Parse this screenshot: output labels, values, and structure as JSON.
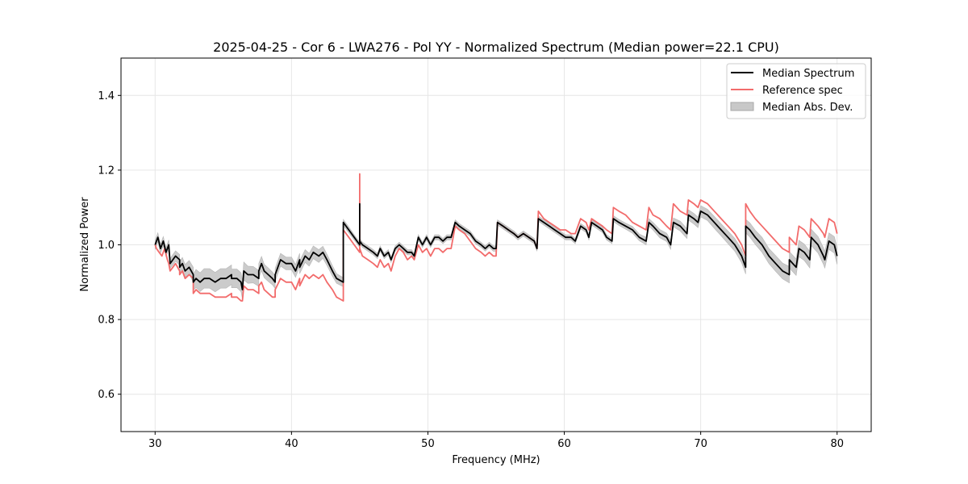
{
  "chart_data": {
    "type": "line",
    "title": "2025-04-25 - Cor 6 - LWA276 - Pol YY - Normalized Spectrum (Median power=22.1 CPU)",
    "xlabel": "Frequency (MHz)",
    "ylabel": "Normalized Power",
    "xlim": [
      27.5,
      82.5
    ],
    "ylim": [
      0.5,
      1.5
    ],
    "xticks": [
      30,
      40,
      50,
      60,
      70,
      80
    ],
    "yticks": [
      0.6,
      0.8,
      1.0,
      1.2,
      1.4
    ],
    "grid": true,
    "legend_position": "top-right",
    "colors": {
      "median": "#000000",
      "reference": "#f26b6b",
      "mad": "#c8c8c8"
    },
    "series": [
      {
        "name": "Median Spectrum",
        "x": [
          30.0,
          30.2,
          30.4,
          30.6,
          30.8,
          31.0,
          31.1,
          31.3,
          31.5,
          31.8,
          31.8,
          32.0,
          32.2,
          32.5,
          32.8,
          32.8,
          33.0,
          33.3,
          33.6,
          34.0,
          34.4,
          34.8,
          35.2,
          35.6,
          35.6,
          36.0,
          36.3,
          36.4,
          36.5,
          36.8,
          37.2,
          37.6,
          37.6,
          37.8,
          38.0,
          38.3,
          38.6,
          38.8,
          38.8,
          39.2,
          39.6,
          40.0,
          40.3,
          40.6,
          40.6,
          41.0,
          41.3,
          41.6,
          42.0,
          42.3,
          42.6,
          43.0,
          43.3,
          43.8,
          43.8,
          44.2,
          44.6,
          45.0,
          45.0,
          45.0,
          45.2,
          45.6,
          46.0,
          46.3,
          46.5,
          46.8,
          47.1,
          47.3,
          47.6,
          47.9,
          48.2,
          48.5,
          48.8,
          49.0,
          49.3,
          49.6,
          49.9,
          50.2,
          50.5,
          50.8,
          51.1,
          51.4,
          51.7,
          52.0,
          52.3,
          52.7,
          53.1,
          53.5,
          53.9,
          54.2,
          54.5,
          54.8,
          55.0,
          55.1,
          55.5,
          55.9,
          56.3,
          56.6,
          57.0,
          57.4,
          57.8,
          58.0,
          58.1,
          58.5,
          58.9,
          59.3,
          59.7,
          60.1,
          60.5,
          60.8,
          61.2,
          61.6,
          61.8,
          62.0,
          62.4,
          62.8,
          63.1,
          63.5,
          63.6,
          64.0,
          64.5,
          65.0,
          65.5,
          66.0,
          66.2,
          66.5,
          67.0,
          67.5,
          67.8,
          68.0,
          68.5,
          69.0,
          69.1,
          69.5,
          69.8,
          70.0,
          70.5,
          71.0,
          71.5,
          72.0,
          72.5,
          73.0,
          73.3,
          73.3,
          73.6,
          74.0,
          74.5,
          75.0,
          75.5,
          76.0,
          76.5,
          76.5,
          77.0,
          77.2,
          77.6,
          78.0,
          78.1,
          78.6,
          79.0,
          79.1,
          79.4,
          79.8,
          80.0
        ],
        "values": [
          1.0,
          1.02,
          0.99,
          1.01,
          0.98,
          1.0,
          0.95,
          0.96,
          0.97,
          0.96,
          0.94,
          0.95,
          0.93,
          0.94,
          0.92,
          0.9,
          0.91,
          0.9,
          0.91,
          0.91,
          0.9,
          0.91,
          0.91,
          0.92,
          0.91,
          0.91,
          0.9,
          0.88,
          0.93,
          0.92,
          0.92,
          0.91,
          0.93,
          0.95,
          0.93,
          0.92,
          0.91,
          0.9,
          0.92,
          0.96,
          0.95,
          0.95,
          0.93,
          0.96,
          0.94,
          0.97,
          0.96,
          0.98,
          0.97,
          0.98,
          0.96,
          0.93,
          0.91,
          0.9,
          1.06,
          1.04,
          1.02,
          1.0,
          1.11,
          1.01,
          1.0,
          0.99,
          0.98,
          0.97,
          0.99,
          0.97,
          0.98,
          0.96,
          0.99,
          1.0,
          0.99,
          0.98,
          0.98,
          0.97,
          1.02,
          1.0,
          1.02,
          1.0,
          1.02,
          1.02,
          1.01,
          1.02,
          1.02,
          1.06,
          1.05,
          1.04,
          1.03,
          1.01,
          1.0,
          0.99,
          1.0,
          0.99,
          0.99,
          1.06,
          1.05,
          1.04,
          1.03,
          1.02,
          1.03,
          1.02,
          1.01,
          0.99,
          1.07,
          1.06,
          1.05,
          1.04,
          1.03,
          1.02,
          1.02,
          1.01,
          1.05,
          1.04,
          1.02,
          1.06,
          1.05,
          1.04,
          1.02,
          1.01,
          1.07,
          1.06,
          1.05,
          1.04,
          1.02,
          1.01,
          1.06,
          1.05,
          1.03,
          1.02,
          1.0,
          1.06,
          1.05,
          1.03,
          1.08,
          1.07,
          1.06,
          1.09,
          1.08,
          1.06,
          1.04,
          1.02,
          1.0,
          0.97,
          0.94,
          1.05,
          1.04,
          1.02,
          1.0,
          0.97,
          0.95,
          0.93,
          0.92,
          0.96,
          0.94,
          0.99,
          0.98,
          0.96,
          1.02,
          1.0,
          0.97,
          0.96,
          1.01,
          1.0,
          0.97
        ],
        "mad": [
          0.012,
          0.012,
          0.012,
          0.012,
          0.012,
          0.013,
          0.013,
          0.014,
          0.014,
          0.014,
          0.015,
          0.016,
          0.017,
          0.018,
          0.02,
          0.022,
          0.024,
          0.025,
          0.026,
          0.026,
          0.026,
          0.026,
          0.026,
          0.026,
          0.025,
          0.025,
          0.025,
          0.025,
          0.024,
          0.023,
          0.022,
          0.021,
          0.02,
          0.019,
          0.018,
          0.018,
          0.017,
          0.017,
          0.017,
          0.017,
          0.017,
          0.017,
          0.017,
          0.017,
          0.017,
          0.017,
          0.017,
          0.017,
          0.017,
          0.016,
          0.015,
          0.014,
          0.013,
          0.012,
          0.008,
          0.008,
          0.007,
          0.007,
          0.007,
          0.007,
          0.007,
          0.007,
          0.007,
          0.007,
          0.007,
          0.007,
          0.007,
          0.007,
          0.007,
          0.007,
          0.007,
          0.007,
          0.007,
          0.007,
          0.007,
          0.007,
          0.007,
          0.007,
          0.007,
          0.007,
          0.007,
          0.007,
          0.007,
          0.007,
          0.007,
          0.007,
          0.007,
          0.007,
          0.007,
          0.007,
          0.007,
          0.007,
          0.007,
          0.007,
          0.007,
          0.007,
          0.007,
          0.007,
          0.007,
          0.007,
          0.007,
          0.007,
          0.007,
          0.007,
          0.007,
          0.007,
          0.007,
          0.007,
          0.007,
          0.007,
          0.007,
          0.007,
          0.007,
          0.007,
          0.007,
          0.007,
          0.007,
          0.007,
          0.008,
          0.008,
          0.008,
          0.009,
          0.009,
          0.01,
          0.01,
          0.01,
          0.011,
          0.011,
          0.012,
          0.012,
          0.013,
          0.013,
          0.014,
          0.014,
          0.014,
          0.015,
          0.015,
          0.016,
          0.016,
          0.017,
          0.017,
          0.018,
          0.018,
          0.018,
          0.019,
          0.019,
          0.02,
          0.02,
          0.021,
          0.021,
          0.022,
          0.022,
          0.022,
          0.022,
          0.022,
          0.022,
          0.022,
          0.022,
          0.022,
          0.022,
          0.022,
          0.022,
          0.022
        ]
      },
      {
        "name": "Reference spec",
        "x": [
          30.0,
          30.1,
          30.3,
          30.5,
          30.7,
          30.9,
          31.0,
          31.1,
          31.3,
          31.5,
          31.8,
          31.8,
          32.0,
          32.2,
          32.5,
          32.8,
          32.8,
          33.0,
          33.3,
          33.6,
          34.0,
          34.4,
          34.8,
          35.2,
          35.6,
          35.6,
          36.0,
          36.3,
          36.4,
          36.5,
          36.8,
          37.2,
          37.6,
          37.6,
          37.8,
          38.0,
          38.3,
          38.6,
          38.8,
          38.8,
          39.2,
          39.6,
          40.0,
          40.3,
          40.6,
          40.6,
          41.0,
          41.3,
          41.6,
          42.0,
          42.3,
          42.6,
          43.0,
          43.3,
          43.8,
          43.8,
          44.2,
          44.6,
          45.0,
          45.0,
          45.0,
          45.2,
          45.6,
          46.0,
          46.3,
          46.5,
          46.8,
          47.1,
          47.3,
          47.6,
          47.9,
          48.2,
          48.5,
          48.8,
          49.0,
          49.3,
          49.6,
          49.9,
          50.2,
          50.5,
          50.8,
          51.1,
          51.4,
          51.7,
          52.0,
          52.3,
          52.7,
          53.1,
          53.5,
          53.9,
          54.2,
          54.5,
          54.8,
          55.0,
          55.1,
          55.5,
          55.9,
          56.3,
          56.6,
          57.0,
          57.4,
          57.8,
          58.0,
          58.1,
          58.5,
          58.9,
          59.3,
          59.7,
          60.1,
          60.5,
          60.8,
          61.2,
          61.6,
          61.8,
          62.0,
          62.4,
          62.8,
          63.1,
          63.5,
          63.6,
          64.0,
          64.5,
          65.0,
          65.5,
          66.0,
          66.2,
          66.5,
          67.0,
          67.5,
          67.8,
          68.0,
          68.5,
          69.0,
          69.1,
          69.5,
          69.8,
          70.0,
          70.5,
          71.0,
          71.5,
          72.0,
          72.5,
          73.0,
          73.3,
          73.3,
          73.6,
          74.0,
          74.5,
          75.0,
          75.5,
          76.0,
          76.5,
          76.5,
          77.0,
          77.2,
          77.6,
          78.0,
          78.1,
          78.6,
          79.0,
          79.1,
          79.4,
          79.8,
          80.0
        ],
        "values": [
          1.0,
          0.99,
          0.98,
          0.97,
          0.99,
          0.96,
          0.95,
          0.93,
          0.94,
          0.95,
          0.93,
          0.92,
          0.93,
          0.91,
          0.92,
          0.91,
          0.87,
          0.88,
          0.87,
          0.87,
          0.87,
          0.86,
          0.86,
          0.86,
          0.87,
          0.86,
          0.86,
          0.85,
          0.85,
          0.89,
          0.88,
          0.88,
          0.87,
          0.89,
          0.9,
          0.88,
          0.87,
          0.86,
          0.86,
          0.88,
          0.91,
          0.9,
          0.9,
          0.88,
          0.91,
          0.89,
          0.92,
          0.91,
          0.92,
          0.91,
          0.92,
          0.9,
          0.88,
          0.86,
          0.85,
          1.04,
          1.02,
          1.0,
          0.98,
          1.19,
          0.99,
          0.97,
          0.96,
          0.95,
          0.94,
          0.96,
          0.94,
          0.95,
          0.93,
          0.97,
          0.99,
          0.98,
          0.96,
          0.97,
          0.96,
          1.0,
          0.98,
          0.99,
          0.97,
          0.99,
          0.99,
          0.98,
          0.99,
          0.99,
          1.05,
          1.04,
          1.03,
          1.01,
          0.99,
          0.98,
          0.97,
          0.98,
          0.97,
          0.97,
          1.06,
          1.05,
          1.04,
          1.03,
          1.02,
          1.03,
          1.02,
          1.01,
          0.99,
          1.09,
          1.07,
          1.06,
          1.05,
          1.04,
          1.04,
          1.03,
          1.03,
          1.07,
          1.06,
          1.04,
          1.07,
          1.06,
          1.05,
          1.04,
          1.03,
          1.1,
          1.09,
          1.08,
          1.06,
          1.05,
          1.04,
          1.1,
          1.08,
          1.07,
          1.05,
          1.04,
          1.11,
          1.09,
          1.08,
          1.12,
          1.11,
          1.1,
          1.12,
          1.11,
          1.09,
          1.07,
          1.05,
          1.03,
          1.0,
          0.97,
          1.11,
          1.09,
          1.07,
          1.05,
          1.03,
          1.01,
          0.99,
          0.98,
          1.02,
          1.0,
          1.05,
          1.04,
          1.02,
          1.07,
          1.05,
          1.03,
          1.02,
          1.07,
          1.06,
          1.03
        ]
      }
    ],
    "legend": {
      "median_label": "Median Spectrum",
      "reference_label": "Reference spec",
      "mad_label": "Median Abs. Dev."
    }
  }
}
